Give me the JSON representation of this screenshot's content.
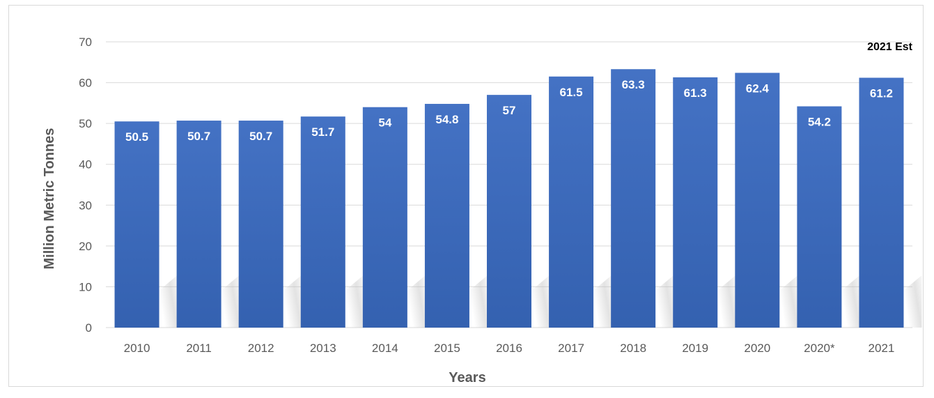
{
  "chart_data": {
    "type": "bar",
    "categories": [
      "2010",
      "2011",
      "2012",
      "2013",
      "2014",
      "2015",
      "2016",
      "2017",
      "2018",
      "2019",
      "2020",
      "2020*",
      "2021"
    ],
    "values": [
      50.5,
      50.7,
      50.7,
      51.7,
      54,
      54.8,
      57,
      61.5,
      63.3,
      61.3,
      62.4,
      54.2,
      61.2
    ],
    "data_labels": [
      "50.5",
      "50.7",
      "50.7",
      "51.7",
      "54",
      "54.8",
      "57",
      "61.5",
      "63.3",
      "61.3",
      "62.4",
      "54.2",
      "61.2"
    ],
    "title": "",
    "xlabel": "Years",
    "ylabel": "Million Metric Tonnes",
    "ylim": [
      0,
      70
    ],
    "yticks": [
      "0",
      "10",
      "20",
      "30",
      "40",
      "50",
      "60",
      "70"
    ],
    "annotation": "2021 Est",
    "grid": true,
    "legend": "none",
    "colors": {
      "bar_top": "#4472c4",
      "bar_bottom": "#2f5597",
      "grid": "#d9d9d9",
      "text": "#595959"
    }
  }
}
